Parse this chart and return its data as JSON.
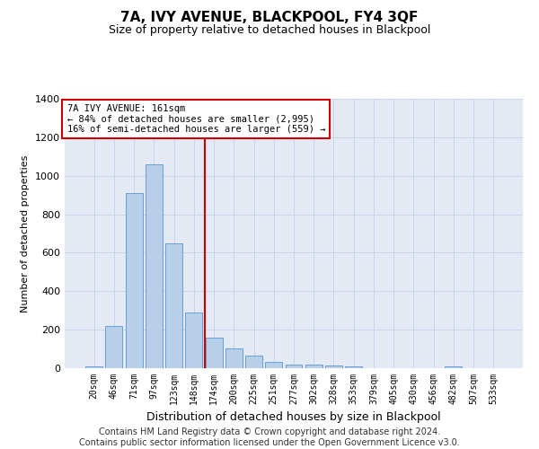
{
  "title": "7A, IVY AVENUE, BLACKPOOL, FY4 3QF",
  "subtitle": "Size of property relative to detached houses in Blackpool",
  "xlabel": "Distribution of detached houses by size in Blackpool",
  "ylabel": "Number of detached properties",
  "bar_color": "#b8cfe8",
  "bar_edge_color": "#6a9fd8",
  "categories": [
    "20sqm",
    "46sqm",
    "71sqm",
    "97sqm",
    "123sqm",
    "148sqm",
    "174sqm",
    "200sqm",
    "225sqm",
    "251sqm",
    "277sqm",
    "302sqm",
    "328sqm",
    "353sqm",
    "379sqm",
    "405sqm",
    "430sqm",
    "456sqm",
    "482sqm",
    "507sqm",
    "533sqm"
  ],
  "values": [
    10,
    220,
    910,
    1060,
    650,
    290,
    158,
    105,
    65,
    35,
    20,
    20,
    15,
    10,
    0,
    0,
    0,
    0,
    10,
    0,
    0
  ],
  "vline_x": 5.54,
  "vline_color": "#cc0000",
  "annotation_text": "7A IVY AVENUE: 161sqm\n← 84% of detached houses are smaller (2,995)\n16% of semi-detached houses are larger (559) →",
  "annotation_box_color": "#ffffff",
  "annotation_box_edge_color": "#cc0000",
  "ylim": [
    0,
    1400
  ],
  "yticks": [
    0,
    200,
    400,
    600,
    800,
    1000,
    1200,
    1400
  ],
  "grid_color": "#c8d4e8",
  "background_color": "#e4eaf4",
  "footer_line1": "Contains HM Land Registry data © Crown copyright and database right 2024.",
  "footer_line2": "Contains public sector information licensed under the Open Government Licence v3.0.",
  "title_fontsize": 11,
  "subtitle_fontsize": 9,
  "footer_fontsize": 7
}
